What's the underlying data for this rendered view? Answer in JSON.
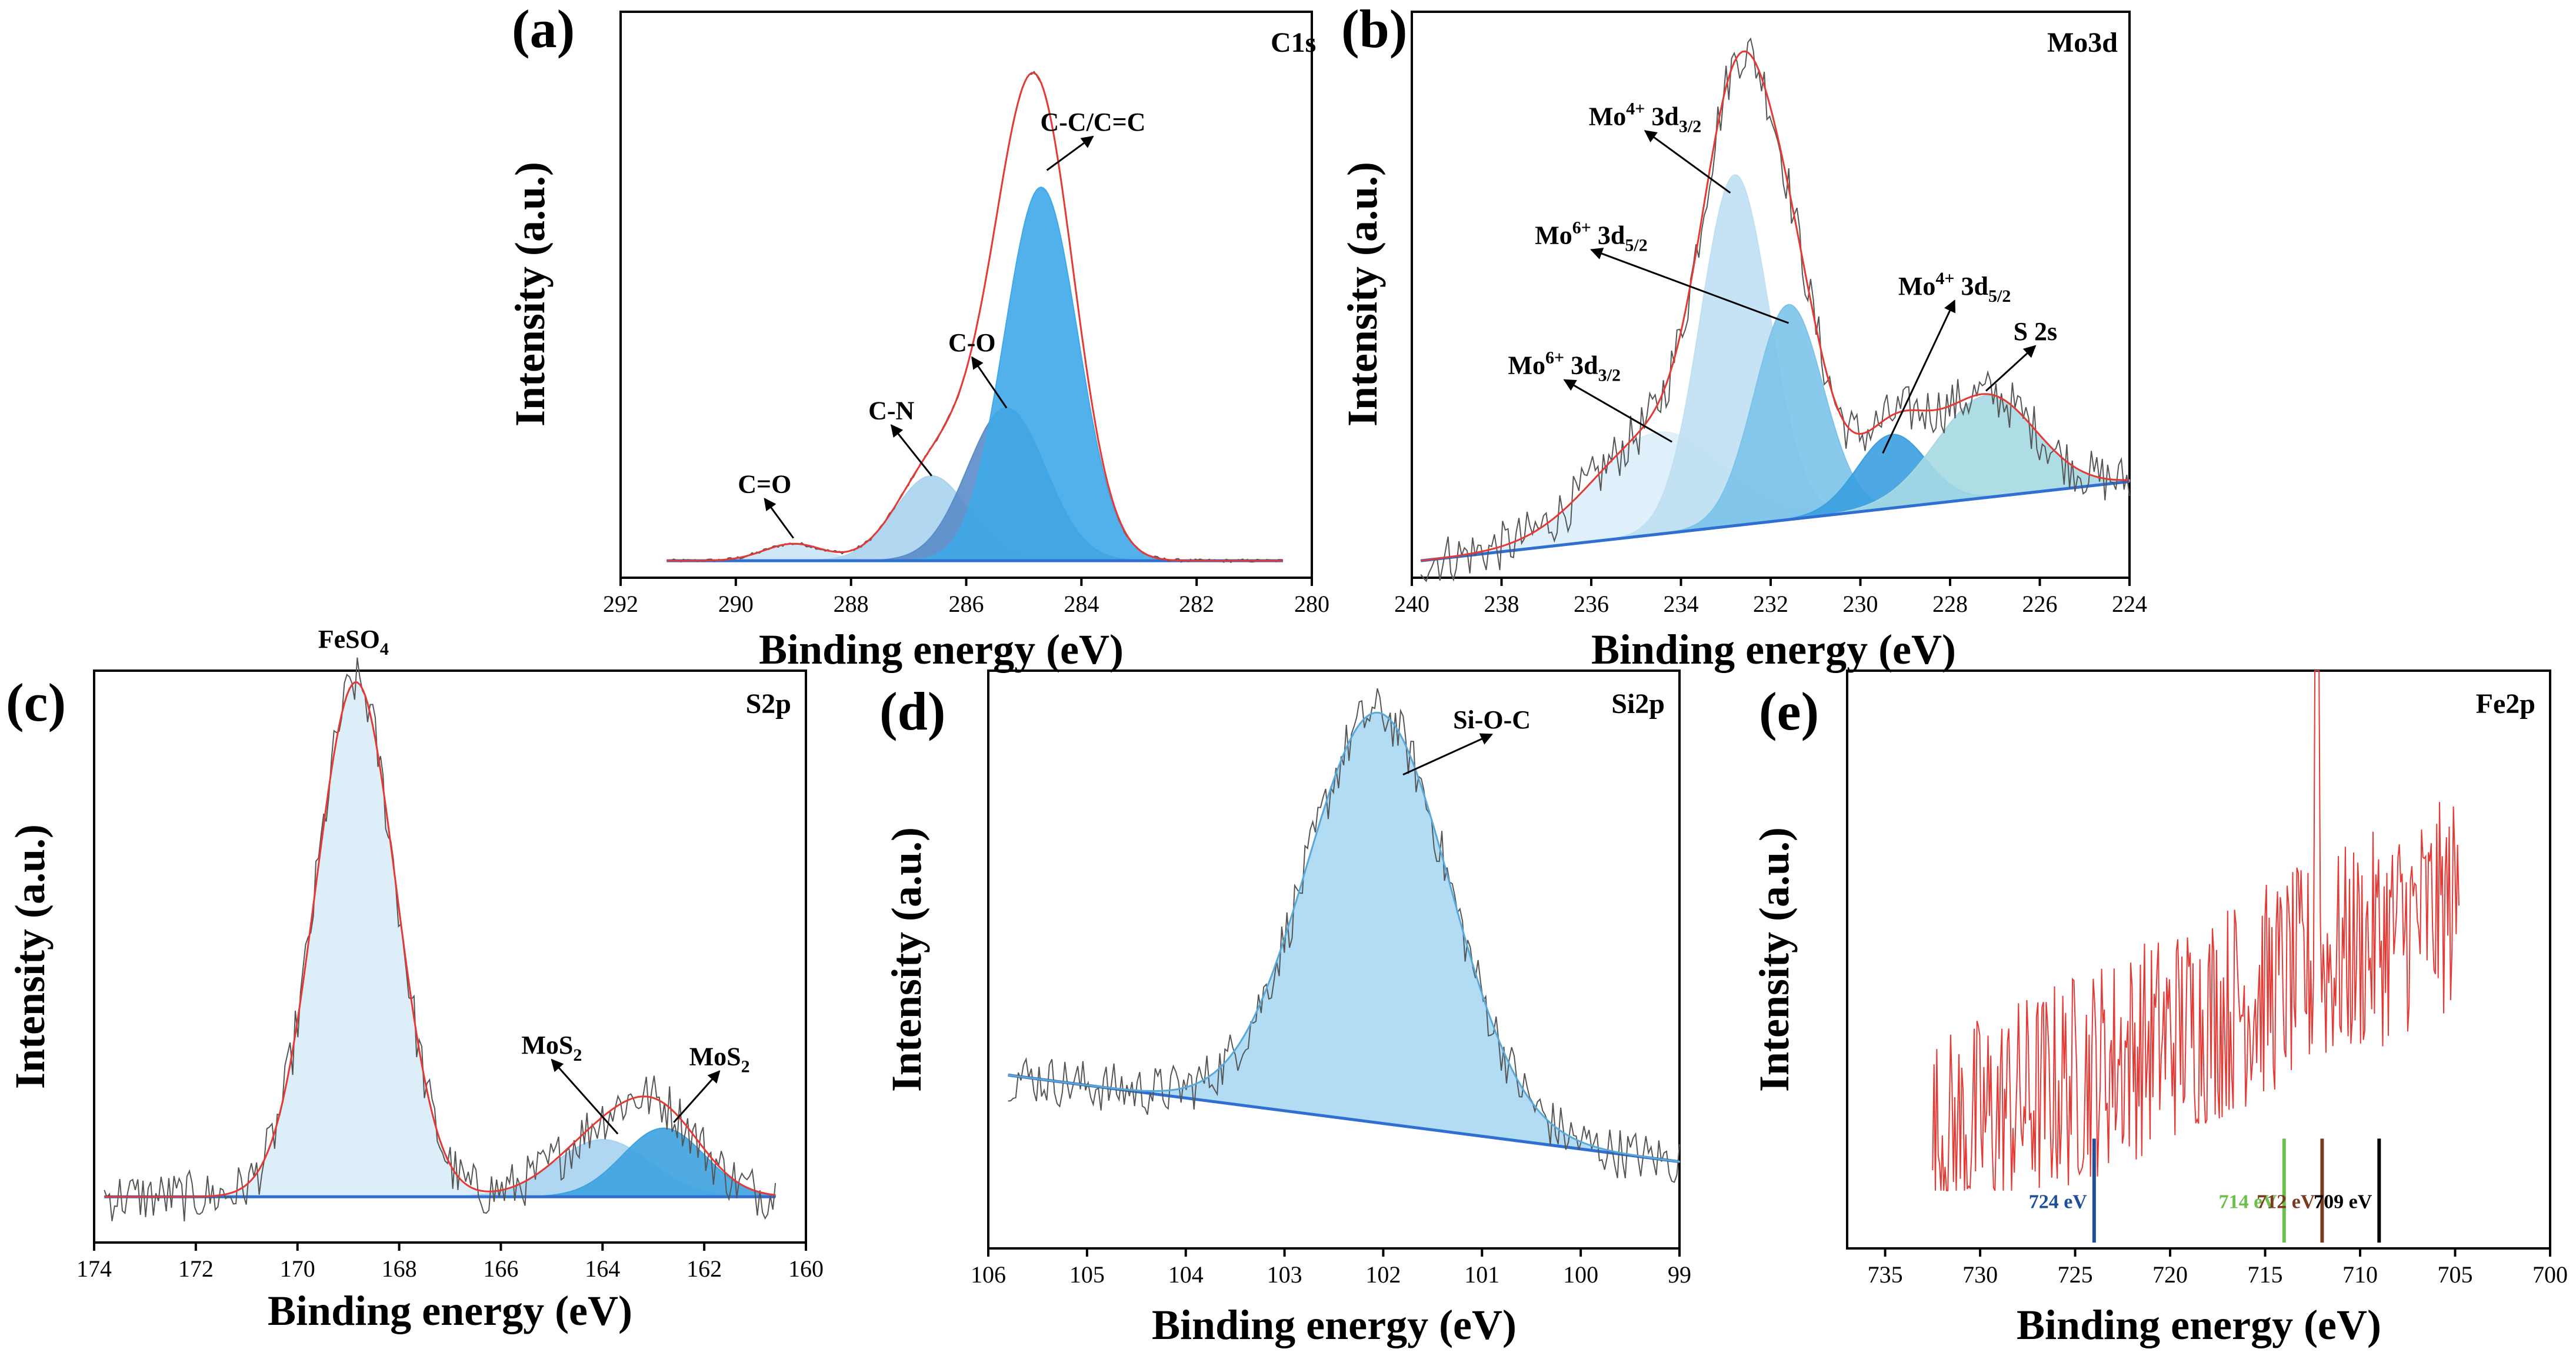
{
  "chart_data": [
    {
      "type": "line",
      "panel_label": "(a)",
      "corner_label": "C1s",
      "xlabel": "Binding energy (eV)",
      "ylabel": "Intensity (a.u.)",
      "xlim": [
        292,
        280
      ],
      "xticks": [
        292,
        290,
        288,
        286,
        284,
        282,
        280
      ],
      "baseline": [
        [
          291.2,
          0.03
        ],
        [
          280.5,
          0.03
        ]
      ],
      "envelope_color": "#e53935",
      "raw_color": "#555555",
      "peaks": [
        {
          "label": "C=O",
          "center": 289.0,
          "fwhm": 1.2,
          "height": 0.03,
          "color": "#c9e6f6"
        },
        {
          "label": "C-N",
          "center": 286.6,
          "fwhm": 1.5,
          "height": 0.15,
          "color": "#a9d3ef"
        },
        {
          "label": "C-O",
          "center": 285.3,
          "fwhm": 1.6,
          "height": 0.27,
          "color": "#5a8cc8"
        },
        {
          "label": "C-C/C=C",
          "center": 284.7,
          "fwhm": 1.5,
          "height": 0.66,
          "color": "#3fa9e8"
        }
      ],
      "annotations": [
        {
          "text": "C=O",
          "tip": [
            289.0,
            0.07
          ],
          "label_at": [
            289.5,
            0.15
          ]
        },
        {
          "text": "C-N",
          "tip": [
            286.6,
            0.18
          ],
          "label_at": [
            287.3,
            0.28
          ]
        },
        {
          "text": "C-O",
          "tip": [
            285.3,
            0.3
          ],
          "label_at": [
            285.9,
            0.4
          ]
        },
        {
          "text": "C-C/C=C",
          "tip": [
            284.6,
            0.72
          ],
          "label_at": [
            283.8,
            0.79
          ]
        }
      ]
    },
    {
      "type": "line",
      "panel_label": "(b)",
      "corner_label": "Mo3d",
      "xlabel": "Binding energy (eV)",
      "ylabel": "Intensity (a.u.)",
      "xlim": [
        240,
        224
      ],
      "xticks": [
        240,
        238,
        236,
        234,
        232,
        230,
        228,
        226,
        224
      ],
      "baseline": [
        [
          239.8,
          0.03
        ],
        [
          224.0,
          0.17
        ]
      ],
      "envelope_color": "#e53935",
      "raw_color": "#555555",
      "peaks": [
        {
          "label": "Mo6+ 3d3/2",
          "center": 234.5,
          "fwhm": 3.4,
          "height": 0.18,
          "color": "#dceef9"
        },
        {
          "label": "Mo4+ 3d3/2",
          "center": 232.8,
          "fwhm": 1.8,
          "height": 0.62,
          "color": "#bfe0f3"
        },
        {
          "label": "Mo6+ 3d5/2",
          "center": 231.6,
          "fwhm": 1.8,
          "height": 0.38,
          "color": "#7cc3ea"
        },
        {
          "label": "Mo4+ 3d5/2",
          "center": 229.3,
          "fwhm": 1.8,
          "height": 0.13,
          "color": "#3a9fe0"
        },
        {
          "label": "S 2s",
          "center": 227.2,
          "fwhm": 2.6,
          "height": 0.18,
          "color": "#a6d9e3"
        }
      ],
      "annotations": [
        {
          "text": "Mo",
          "sup": "6+",
          "mid": " 3d",
          "sub": "3/2",
          "tip": [
            234.2,
            0.24
          ],
          "label_at": [
            236.6,
            0.36
          ]
        },
        {
          "text": "Mo",
          "sup": "4+",
          "mid": " 3d",
          "sub": "3/2",
          "tip": [
            232.9,
            0.68
          ],
          "label_at": [
            234.8,
            0.8
          ]
        },
        {
          "text": "Mo",
          "sup": "6+",
          "mid": " 3d",
          "sub": "5/2",
          "tip": [
            231.6,
            0.45
          ],
          "label_at": [
            236.0,
            0.59
          ]
        },
        {
          "text": "Mo",
          "sup": "4+",
          "mid": " 3d",
          "sub": "5/2",
          "tip": [
            229.5,
            0.22
          ],
          "label_at": [
            227.9,
            0.5
          ]
        },
        {
          "text": "S 2s",
          "tip": [
            227.2,
            0.33
          ],
          "label_at": [
            226.1,
            0.42
          ]
        }
      ]
    },
    {
      "type": "line",
      "panel_label": "(c)",
      "corner_label": "S2p",
      "xlabel": "Binding energy (eV)",
      "ylabel": "Intensity (a.u.)",
      "xlim": [
        174,
        160
      ],
      "xticks": [
        174,
        172,
        170,
        168,
        166,
        164,
        162,
        160
      ],
      "baseline": [
        [
          173.8,
          0.08
        ],
        [
          160.6,
          0.08
        ]
      ],
      "envelope_color": "#e53935",
      "raw_color": "#555555",
      "peaks": [
        {
          "label": "FeSO4",
          "center": 168.85,
          "fwhm": 1.85,
          "height": 0.9,
          "color": "#d8edf8"
        },
        {
          "label": "MoS2",
          "center": 164.0,
          "fwhm": 2.2,
          "height": 0.1,
          "color": "#a6d3ef"
        },
        {
          "label": "MoS2",
          "center": 162.8,
          "fwhm": 1.9,
          "height": 0.12,
          "color": "#3ea2e0"
        }
      ],
      "annotations": [
        {
          "text": "FeSO",
          "sub": "4",
          "tip": null,
          "label_at": [
            168.9,
            1.04
          ]
        },
        {
          "text": "MoS",
          "sub": "2",
          "tip": [
            163.7,
            0.19
          ],
          "label_at": [
            165.0,
            0.33
          ]
        },
        {
          "text": "MoS",
          "sub": "2",
          "tip": [
            162.6,
            0.21
          ],
          "label_at": [
            161.7,
            0.31
          ]
        }
      ]
    },
    {
      "type": "line",
      "panel_label": "(d)",
      "corner_label": "Si2p",
      "xlabel": "Binding energy (eV)",
      "ylabel": "Intensity (a.u.)",
      "xlim": [
        106,
        99
      ],
      "xticks": [
        106,
        105,
        104,
        103,
        102,
        101,
        100,
        99
      ],
      "baseline": [
        [
          105.8,
          0.3
        ],
        [
          99.0,
          0.15
        ]
      ],
      "envelope_color": "#5aa8d8",
      "raw_color": "#555555",
      "peaks": [
        {
          "label": "Si-O-C",
          "center": 102.05,
          "fwhm": 1.7,
          "height": 0.71,
          "color": "#a8d8f2"
        }
      ],
      "annotations": [
        {
          "text": "Si-O-C",
          "tip": [
            101.8,
            0.82
          ],
          "label_at": [
            100.9,
            0.9
          ]
        }
      ]
    },
    {
      "type": "line",
      "panel_label": "(e)",
      "corner_label": "Fe2p",
      "xlabel": "Binding energy (eV)",
      "ylabel": "Intensity (a.u.)",
      "xlim": [
        737,
        700
      ],
      "xticks": [
        735,
        730,
        725,
        720,
        715,
        710,
        705,
        700
      ],
      "raw_color": "#e53935",
      "spectrum_range": [
        732.5,
        704.8
      ],
      "reference_lines": [
        {
          "energy": 724,
          "label": "724 eV",
          "color": "#1f4e9c"
        },
        {
          "energy": 714,
          "label": "714 eV",
          "color": "#6cc04a"
        },
        {
          "energy": 712,
          "label": "712 eV",
          "color": "#7a3a1e"
        },
        {
          "energy": 709,
          "label": "709 eV",
          "color": "#000000"
        }
      ]
    }
  ]
}
